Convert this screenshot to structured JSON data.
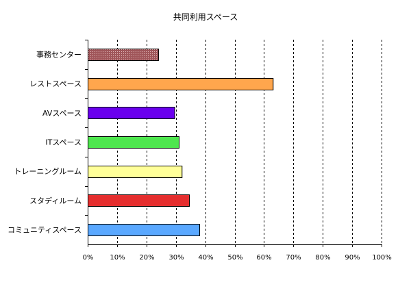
{
  "chart_data": {
    "type": "bar",
    "orientation": "horizontal",
    "title": "共同利用スペース",
    "xlabel": "",
    "ylabel": "",
    "xlim": [
      0,
      100
    ],
    "x_ticks": [
      "0%",
      "10%",
      "20%",
      "30%",
      "40%",
      "50%",
      "60%",
      "70%",
      "80%",
      "90%",
      "100%"
    ],
    "grid": true,
    "legend": "none",
    "categories": [
      "事務センター",
      "レストスペース",
      "AVスペース",
      "ITスペース",
      "トレーニングルーム",
      "スタディルーム",
      "コミュニティスペース"
    ],
    "values": [
      24,
      63,
      29.5,
      31,
      32,
      34.5,
      38
    ],
    "colors": [
      "#a0565a",
      "#ffa64d",
      "#6a00ee",
      "#4ee64e",
      "#ffff99",
      "#e52e2e",
      "#5aa8ff"
    ]
  }
}
